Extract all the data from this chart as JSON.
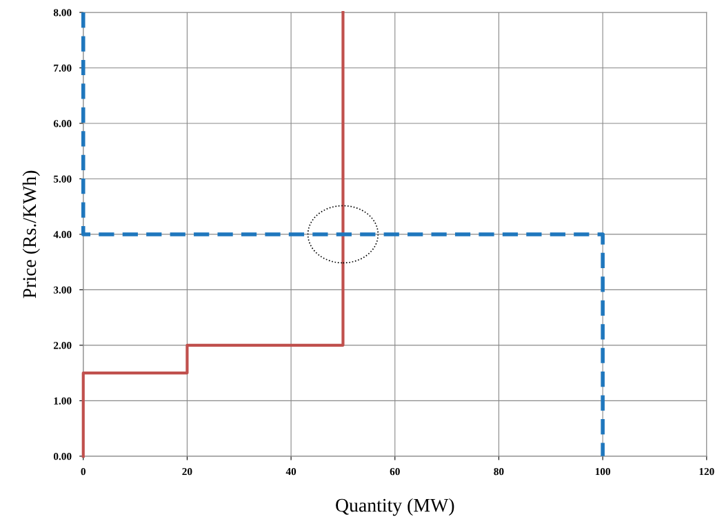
{
  "chart_data": {
    "type": "line",
    "xlabel": "Quantity (MW)",
    "ylabel": "Price (Rs./KWh)",
    "series": [
      {
        "color": "#c0504d",
        "line_style": "solid",
        "x": [
          0,
          0,
          20,
          20,
          50,
          50
        ],
        "values": [
          0,
          1.5,
          1.5,
          2,
          2,
          8
        ]
      },
      {
        "color": "#1f77bd",
        "line_style": "dashed",
        "x": [
          0,
          0,
          100,
          100
        ],
        "values": [
          8,
          4,
          4,
          0
        ]
      }
    ],
    "xlim": [
      0,
      120
    ],
    "xticks": [
      0,
      20,
      40,
      60,
      80,
      100,
      120
    ],
    "ylim": [
      0,
      8
    ],
    "yticks": [
      {
        "value": 0,
        "label": "0.00"
      },
      {
        "value": 1,
        "label": "1.00"
      },
      {
        "value": 2,
        "label": "2.00"
      },
      {
        "value": 3,
        "label": "3.00"
      },
      {
        "value": 4,
        "label": "4.00"
      },
      {
        "value": 5,
        "label": "5.00"
      },
      {
        "value": 6,
        "label": "6.00"
      },
      {
        "value": 7,
        "label": "7.00"
      },
      {
        "value": 8,
        "label": "8.00"
      }
    ],
    "grid": true,
    "legend": false
  }
}
